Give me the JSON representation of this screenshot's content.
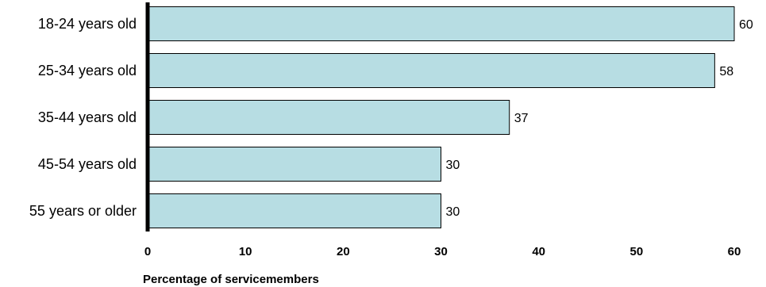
{
  "chart_data": {
    "type": "bar",
    "orientation": "horizontal",
    "categories": [
      "18-24 years old",
      "25-34 years old",
      "35-44 years old",
      "45-54 years old",
      "55 years or older"
    ],
    "values": [
      60,
      58,
      37,
      30,
      30
    ],
    "xlabel": "Percentage of servicemembers",
    "ylabel": "",
    "xlim": [
      0,
      60
    ],
    "xticks": [
      0,
      10,
      20,
      30,
      40,
      50,
      60
    ],
    "grid": false,
    "colors": {
      "bar_fill": "#b7dde3",
      "bar_stroke": "#000000",
      "axis": "#000000"
    }
  }
}
